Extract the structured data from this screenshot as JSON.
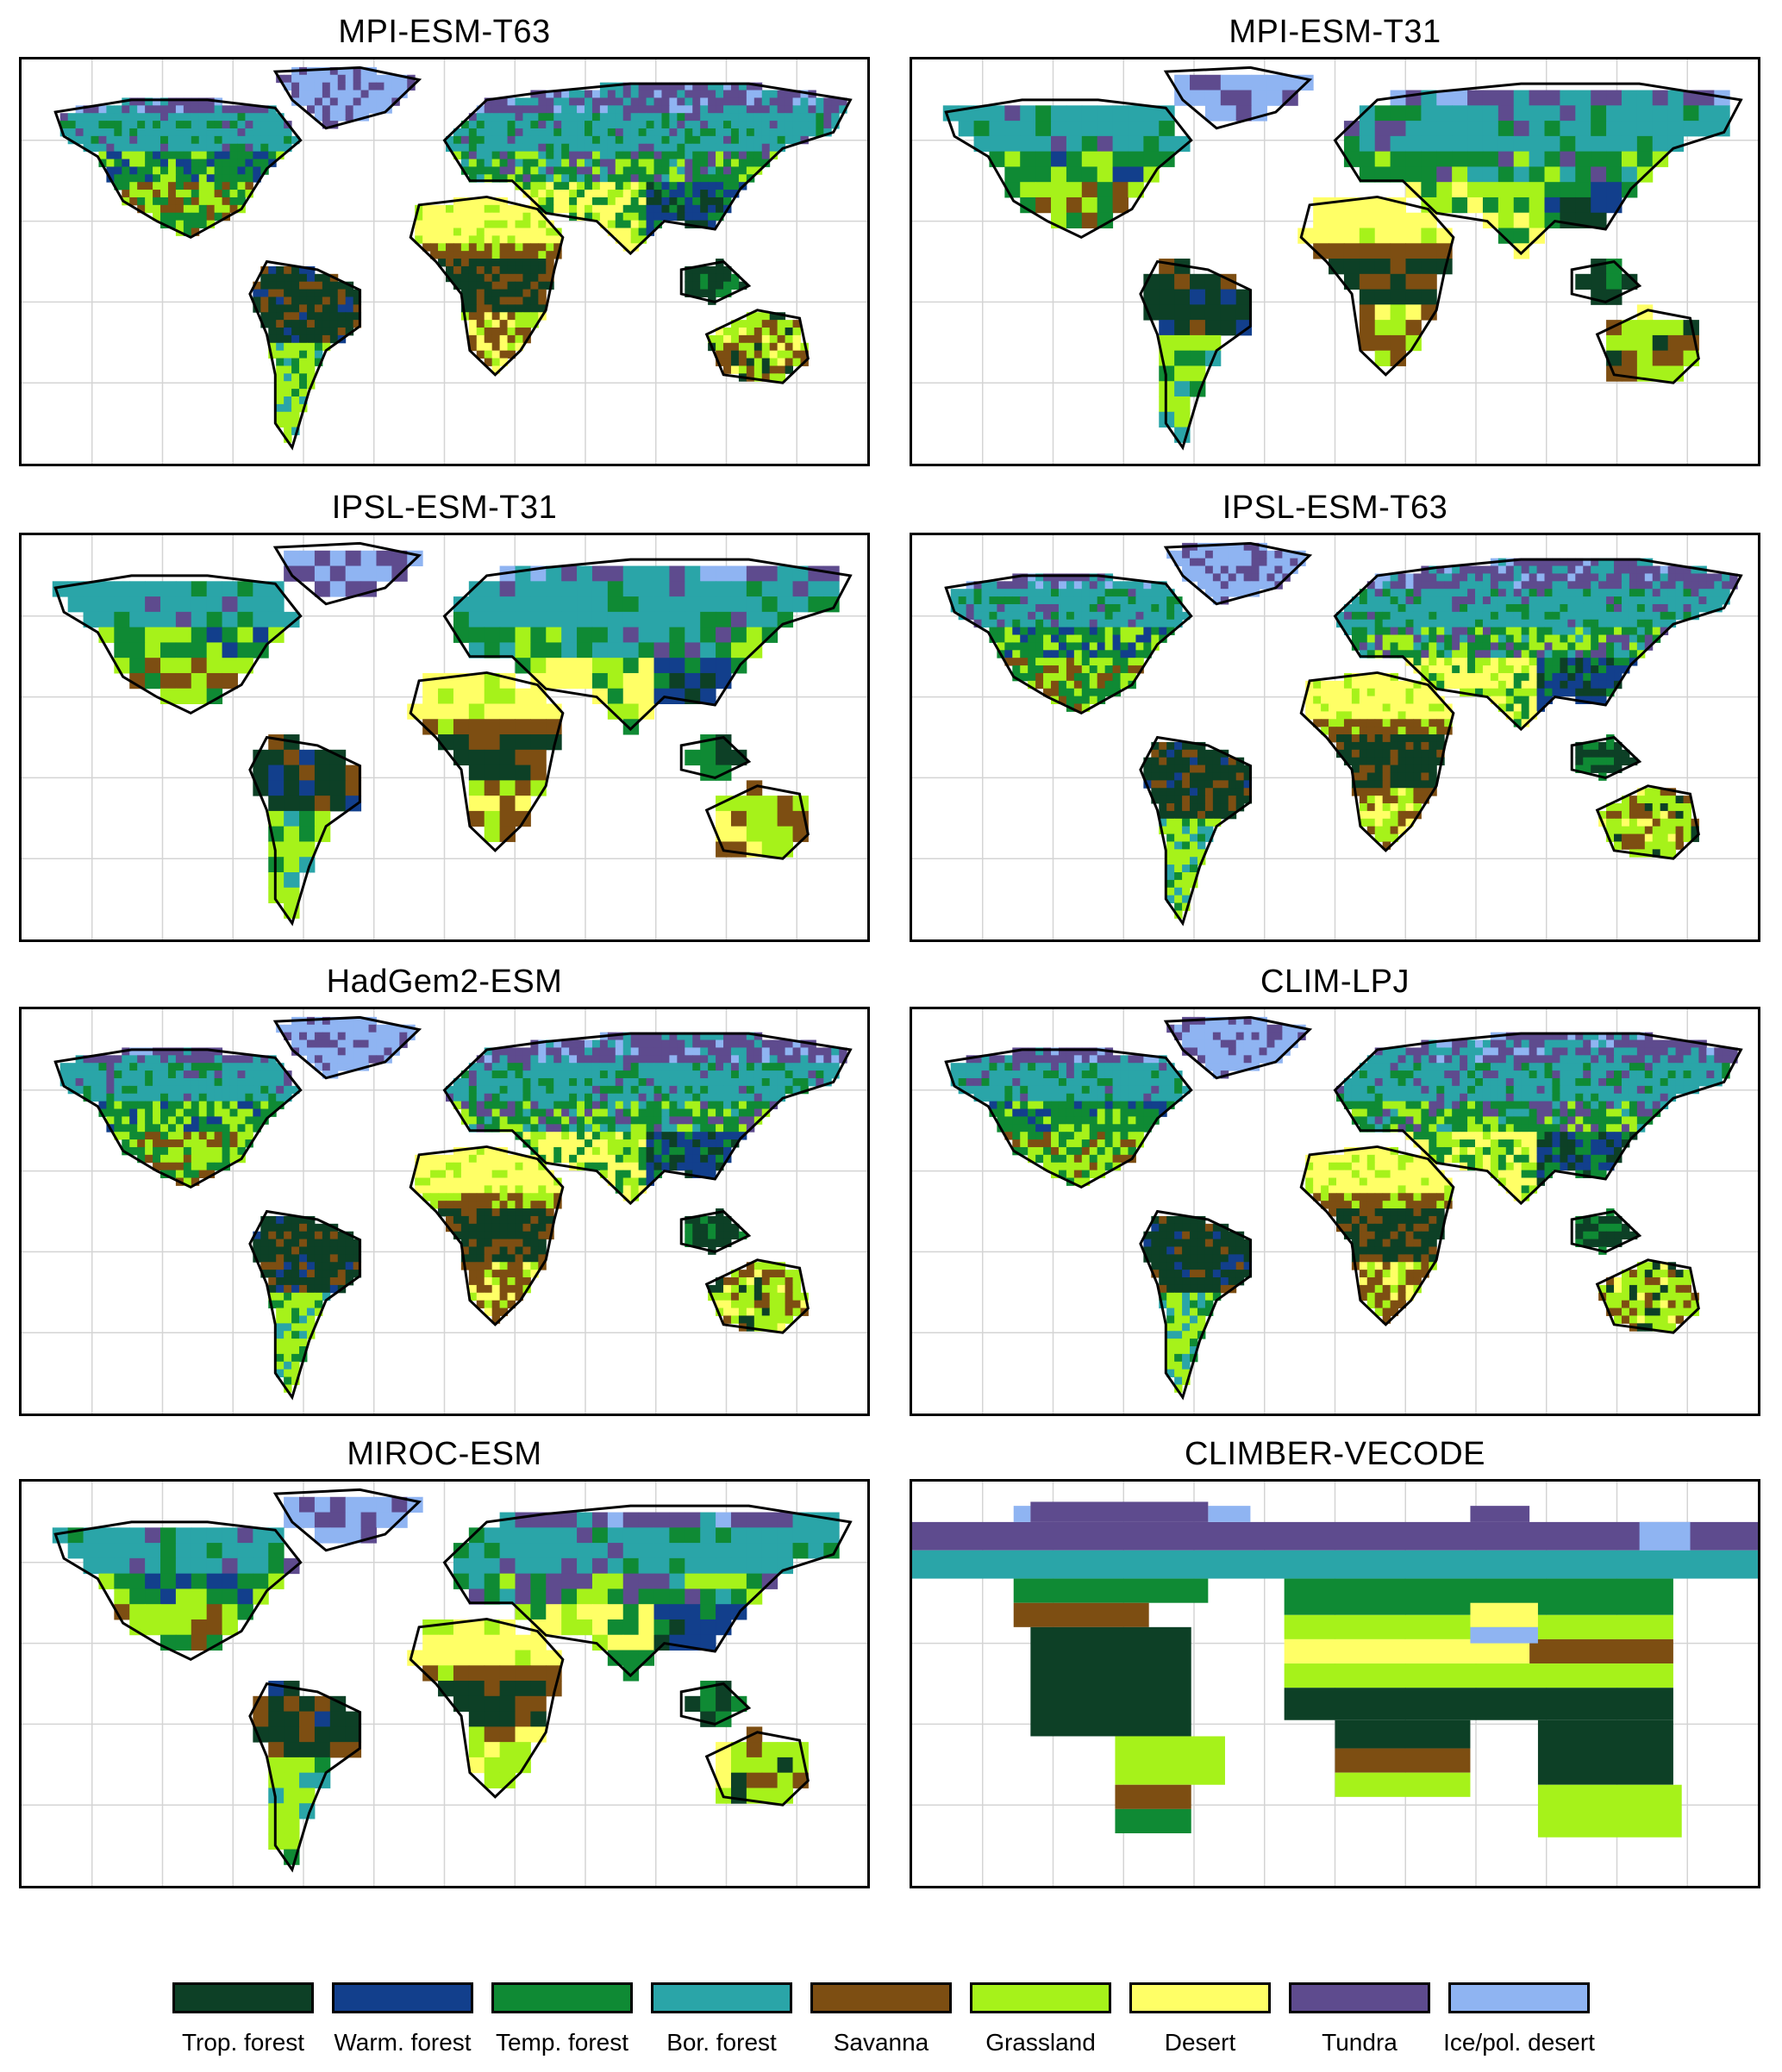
{
  "panels": [
    {
      "title": "MPI-ESM-T63",
      "kind": "fine",
      "seed": 11
    },
    {
      "title": "MPI-ESM-T31",
      "kind": "coarse",
      "seed": 23
    },
    {
      "title": "IPSL-ESM-T31",
      "kind": "coarse",
      "seed": 37
    },
    {
      "title": "IPSL-ESM-T63",
      "kind": "fine",
      "seed": 41
    },
    {
      "title": "HadGem2-ESM",
      "kind": "fine",
      "seed": 53
    },
    {
      "title": "CLIM-LPJ",
      "kind": "fine",
      "seed": 67
    },
    {
      "title": "MIROC-ESM",
      "kind": "coarse",
      "seed": 79
    },
    {
      "title": "CLIMBER-VECODE",
      "kind": "blocks",
      "seed": 83
    }
  ],
  "legend": [
    {
      "key": "trop",
      "label": "Trop. forest",
      "color": "#0d4026"
    },
    {
      "key": "warm",
      "label": "Warm. forest",
      "color": "#123f8c"
    },
    {
      "key": "temp",
      "label": "Temp. forest",
      "color": "#0f8a34"
    },
    {
      "key": "bor",
      "label": "Bor. forest",
      "color": "#2aa5a8"
    },
    {
      "key": "sav",
      "label": "Savanna",
      "color": "#7d4e12"
    },
    {
      "key": "grass",
      "label": "Grassland",
      "color": "#a6f21a"
    },
    {
      "key": "desert",
      "label": "Desert",
      "color": "#ffff66"
    },
    {
      "key": "tundra",
      "label": "Tundra",
      "color": "#5e4b8e"
    },
    {
      "key": "ice",
      "label": "Ice/pol. desert",
      "color": "#8fb4f2"
    }
  ]
}
